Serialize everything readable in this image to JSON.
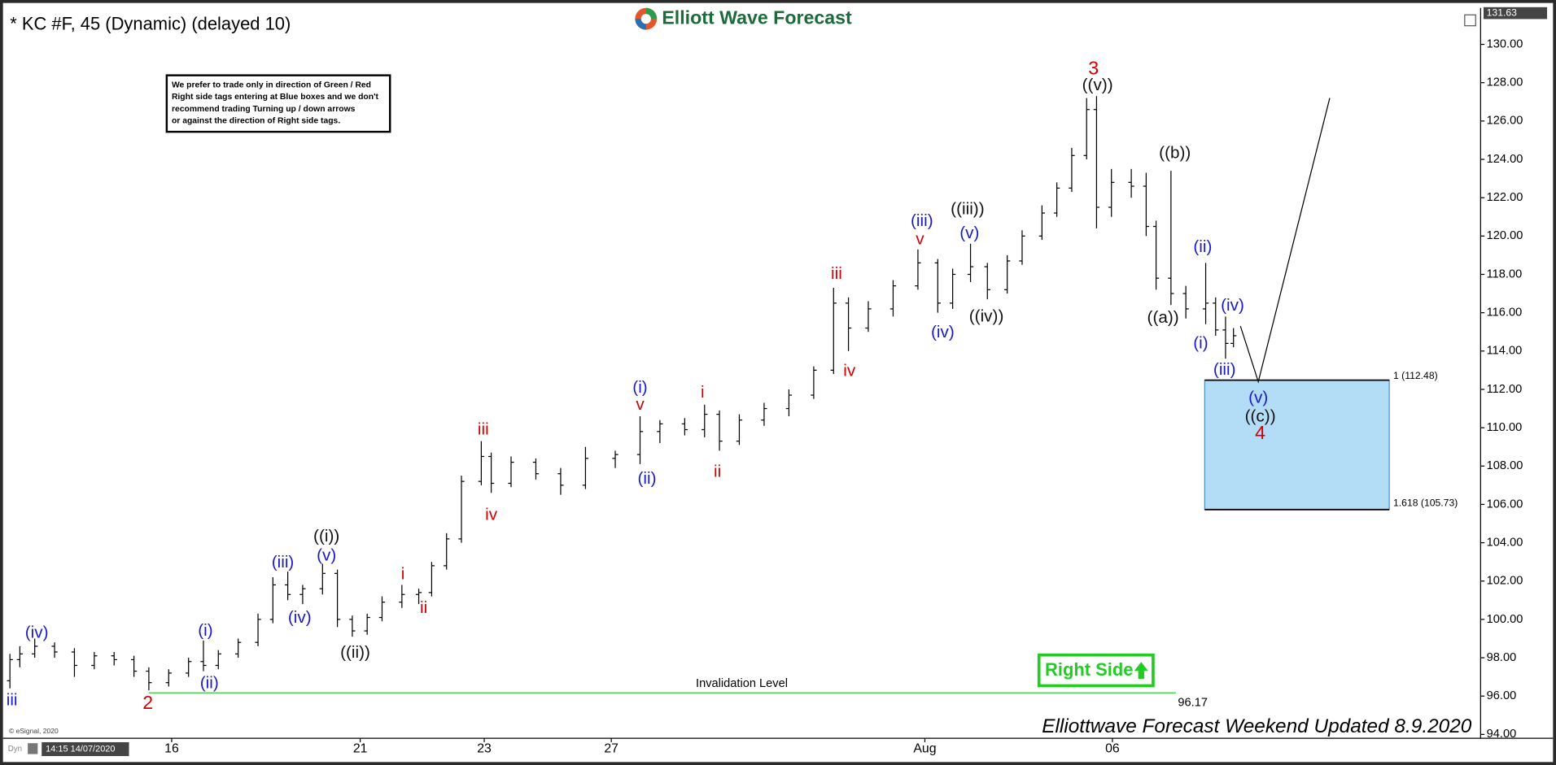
{
  "chart_data": {
    "type": "ohlc",
    "title": "* KC #F, 45 (Dynamic) (delayed 10)",
    "logo": "Elliott Wave Forecast",
    "note": [
      "We prefer to trade only in direction of Green / Red",
      "Right side tags entering at Blue boxes and we don't",
      "recommend trading Turning up / down arrows",
      "or against the direction of Right side tags."
    ],
    "tag": "Right Side",
    "footer": "Elliottwave Forecast Weekend Updated 8.9.2020",
    "copyright": "© eSignal, 2020",
    "mode": "Dyn",
    "timestamp": "14:15 14/07/2020",
    "last_price": 131.63,
    "xlim": [
      0,
      371
    ],
    "ylim": [
      93.8,
      131.9
    ],
    "xticks": [
      {
        "value": 41.25,
        "label": "16"
      },
      {
        "value": 88.75,
        "label": "21"
      },
      {
        "value": 120,
        "label": "23"
      },
      {
        "value": 152,
        "label": "27"
      },
      {
        "value": 231,
        "label": "Aug"
      },
      {
        "value": 278.25,
        "label": "06"
      }
    ],
    "yticks": [
      {
        "value": 94,
        "label": "94.00"
      },
      {
        "value": 96,
        "label": "96.00"
      },
      {
        "value": 98,
        "label": "98.00"
      },
      {
        "value": 100,
        "label": "100.00"
      },
      {
        "value": 102,
        "label": "102.00"
      },
      {
        "value": 104,
        "label": "104.00"
      },
      {
        "value": 106,
        "label": "106.00"
      },
      {
        "value": 108,
        "label": "108.00"
      },
      {
        "value": 110,
        "label": "110.00"
      },
      {
        "value": 112,
        "label": "112.00"
      },
      {
        "value": 114,
        "label": "114.00"
      },
      {
        "value": 116,
        "label": "116.00"
      },
      {
        "value": 118,
        "label": "118.00"
      },
      {
        "value": 120,
        "label": "120.00"
      },
      {
        "value": 122,
        "label": "122.00"
      },
      {
        "value": 124,
        "label": "124.00"
      },
      {
        "value": 126,
        "label": "126.00"
      },
      {
        "value": 128,
        "label": "128.00"
      },
      {
        "value": 130,
        "label": "130.00"
      }
    ],
    "color": "#000000",
    "x": [
      0.5,
      3,
      6.75,
      11.75,
      16.75,
      21.75,
      26.75,
      31.75,
      35.5,
      40.5,
      45.5,
      49.25,
      53,
      58,
      63,
      66.75,
      70.5,
      74.25,
      79.25,
      83,
      86.75,
      90.5,
      94.25,
      99.25,
      103.5,
      106.75,
      110.5,
      114.25,
      119.25,
      121.75,
      126.75,
      133,
      139.25,
      145.5,
      153,
      159.25,
      164.25,
      170.5,
      175.5,
      179.25,
      184.25,
      190.5,
      196.75,
      203,
      208,
      211.75,
      216.75,
      223,
      229.25,
      234.25,
      238,
      242.5,
      246.75,
      251.75,
      255.5,
      260.5,
      264.25,
      268,
      271.75,
      274.25,
      278,
      283,
      286.75,
      289.25,
      293,
      296.75,
      301.75,
      304.25,
      306.75,
      308.75
    ],
    "open": [
      96.8,
      97.9,
      98.2,
      98.6,
      98.3,
      97.6,
      98.1,
      97.9,
      97.3,
      96.7,
      97.2,
      97.8,
      97.6,
      98.2,
      98.8,
      100,
      101.8,
      101.3,
      101.6,
      102.4,
      100,
      99.4,
      100.1,
      100.9,
      101.3,
      101.4,
      102.8,
      104.2,
      107.2,
      108.5,
      107.1,
      108.2,
      107.6,
      107,
      108.4,
      108.6,
      109.8,
      110.2,
      109.9,
      110.7,
      109.3,
      110.4,
      111,
      111.7,
      113,
      116.5,
      115.2,
      116.2,
      117.4,
      118.6,
      116.5,
      118,
      118.4,
      117.2,
      118.7,
      120,
      121.2,
      122.5,
      124.2,
      126.6,
      121.5,
      122.8,
      122.6,
      120.5,
      117.8,
      117,
      116.2,
      116.5,
      115.1,
      114.4
    ],
    "high": [
      98.2,
      98.6,
      99,
      98.8,
      98.5,
      98.3,
      98.3,
      98.1,
      97.5,
      97.4,
      98,
      98.9,
      98.4,
      99,
      100.3,
      102.2,
      102.5,
      101.8,
      102.9,
      102.6,
      100.2,
      100.3,
      101.2,
      101.8,
      101.6,
      103,
      104.5,
      107.5,
      109.3,
      108.7,
      108.5,
      108.4,
      107.9,
      109,
      108.8,
      110.6,
      110.4,
      110.5,
      111.2,
      110.9,
      110.7,
      111.3,
      112,
      113.2,
      117.3,
      116.8,
      116.6,
      117.7,
      119.3,
      118.8,
      118.3,
      119.6,
      118.6,
      119,
      120.3,
      121.6,
      122.8,
      124.6,
      127.2,
      127.3,
      123.5,
      123.5,
      123.3,
      120.8,
      123.4,
      117.4,
      118.6,
      116.8,
      115.8,
      115.2
    ],
    "low": [
      96.4,
      97.5,
      98,
      98,
      97,
      97.4,
      97.6,
      97,
      96.3,
      96.5,
      97,
      97.3,
      97.4,
      98,
      98.6,
      99.8,
      101,
      100.8,
      101.3,
      99.6,
      99.1,
      99.2,
      99.9,
      100.6,
      100.8,
      101.2,
      102.6,
      104,
      107,
      106.6,
      106.9,
      107.3,
      106.5,
      106.8,
      107.9,
      108.1,
      109.2,
      109.6,
      109.5,
      108.8,
      109.1,
      110.1,
      110.6,
      111.5,
      112.8,
      114,
      115,
      115.8,
      117.2,
      116,
      116.2,
      117.6,
      116.7,
      117,
      118.5,
      119.8,
      121,
      122.3,
      124,
      120.4,
      121,
      122,
      120,
      117.2,
      116.4,
      115.7,
      115.4,
      114.8,
      113.6,
      114.2
    ],
    "close": [
      97.9,
      98.2,
      98.6,
      98.3,
      97.6,
      98.1,
      97.9,
      97.3,
      96.7,
      97.2,
      97.8,
      97.6,
      98.2,
      98.8,
      100,
      101.8,
      101.3,
      101.6,
      102.4,
      100,
      99.4,
      100.1,
      100.9,
      101.3,
      101.4,
      102.8,
      104.2,
      107.2,
      108.5,
      107.1,
      108.2,
      107.6,
      107,
      108.4,
      108.6,
      109.8,
      110.2,
      109.9,
      110.7,
      109.3,
      110.4,
      111,
      111.7,
      113,
      116.5,
      115.2,
      116.2,
      117.4,
      118.6,
      116.5,
      118,
      118.4,
      117.2,
      118.7,
      120,
      121.2,
      122.5,
      124.2,
      126.6,
      121.5,
      122.8,
      122.6,
      120.5,
      117.8,
      117,
      116.2,
      116.5,
      115.1,
      114.4,
      114.8
    ],
    "annotations": [
      {
        "text": "iii",
        "color": "#1a1acc",
        "x": 1,
        "y": 95.76
      },
      {
        "text": "(iv)",
        "color": "#1a1acc",
        "x": 7.25,
        "y": 99.28
      },
      {
        "text": "2",
        "color": "#d40000",
        "x": 35.25,
        "y": 95.6
      },
      {
        "text": "(i)",
        "color": "#1a1acc",
        "x": 49.75,
        "y": 99.38
      },
      {
        "text": "(ii)",
        "color": "#1a1acc",
        "x": 50.75,
        "y": 96.64
      },
      {
        "text": "(iii)",
        "color": "#1a1acc",
        "x": 69.25,
        "y": 102.95
      },
      {
        "text": "(iv)",
        "color": "#1a1acc",
        "x": 73.5,
        "y": 100.05
      },
      {
        "text": "((i))",
        "color": "#111111",
        "x": 80.25,
        "y": 104.3
      },
      {
        "text": "(v)",
        "color": "#1a1acc",
        "x": 80.25,
        "y": 103.3
      },
      {
        "text": "((ii))",
        "color": "#111111",
        "x": 87.5,
        "y": 98.24
      },
      {
        "text": "i",
        "color": "#d40000",
        "x": 99.5,
        "y": 102.33
      },
      {
        "text": "ii",
        "color": "#d40000",
        "x": 104.75,
        "y": 100.57
      },
      {
        "text": "iii",
        "color": "#d40000",
        "x": 119.75,
        "y": 109.88
      },
      {
        "text": "iv",
        "color": "#d40000",
        "x": 121.75,
        "y": 105.43
      },
      {
        "text": "(i)",
        "color": "#1a1acc",
        "x": 159.25,
        "y": 112.05
      },
      {
        "text": "v",
        "color": "#d40000",
        "x": 159.25,
        "y": 111.17
      },
      {
        "text": "(ii)",
        "color": "#1a1acc",
        "x": 161,
        "y": 107.3
      },
      {
        "text": "i",
        "color": "#d40000",
        "x": 175,
        "y": 111.8
      },
      {
        "text": "ii",
        "color": "#d40000",
        "x": 178.75,
        "y": 107.66
      },
      {
        "text": "iii",
        "color": "#d40000",
        "x": 208.75,
        "y": 118
      },
      {
        "text": "iv",
        "color": "#d40000",
        "x": 212,
        "y": 112.93
      },
      {
        "text": "(iii)",
        "color": "#1a1acc",
        "x": 230.25,
        "y": 120.75
      },
      {
        "text": "v",
        "color": "#d40000",
        "x": 229.75,
        "y": 119.8
      },
      {
        "text": "(iv)",
        "color": "#1a1acc",
        "x": 235.5,
        "y": 114.95
      },
      {
        "text": "((iii))",
        "color": "#111111",
        "x": 241.75,
        "y": 121.37
      },
      {
        "text": "(v)",
        "color": "#1a1acc",
        "x": 242.25,
        "y": 120.12
      },
      {
        "text": "((iv))",
        "color": "#111111",
        "x": 246.5,
        "y": 115.78
      },
      {
        "text": "3",
        "color": "#d40000",
        "x": 273.5,
        "y": 128.7
      },
      {
        "text": "((v))",
        "color": "#111111",
        "x": 274.5,
        "y": 127.83
      },
      {
        "text": "((b))",
        "color": "#111111",
        "x": 294,
        "y": 124.3
      },
      {
        "text": "((a))",
        "color": "#111111",
        "x": 291,
        "y": 115.7
      },
      {
        "text": "(ii)",
        "color": "#1a1acc",
        "x": 301,
        "y": 119.4
      },
      {
        "text": "(iv)",
        "color": "#1a1acc",
        "x": 308.5,
        "y": 116.35
      },
      {
        "text": "(i)",
        "color": "#1a1acc",
        "x": 300.5,
        "y": 114.38
      },
      {
        "text": "(iii)",
        "color": "#1a1acc",
        "x": 306.5,
        "y": 112.99
      },
      {
        "text": "(v)",
        "color": "#1a1acc",
        "x": 315,
        "y": 111.54
      },
      {
        "text": "((c))",
        "color": "#111111",
        "x": 315.5,
        "y": 110.55
      },
      {
        "text": "4",
        "color": "#d40000",
        "x": 315.5,
        "y": 109.68
      }
    ],
    "invalidation": {
      "label": "Invalidation Level",
      "value": 96.17,
      "x": [
        35.5,
        294.25
      ],
      "color": "#33cc33"
    },
    "target_box": {
      "top": 112.48,
      "bottom": 105.73,
      "x": [
        301.5,
        348
      ],
      "color": "#b3dcf7",
      "value_labels": [
        "1 (112.48)",
        "1.618 (105.73)"
      ]
    },
    "projection": {
      "x": [
        310.5,
        315,
        333
      ],
      "y": [
        115.3,
        112.4,
        127.2
      ]
    }
  }
}
